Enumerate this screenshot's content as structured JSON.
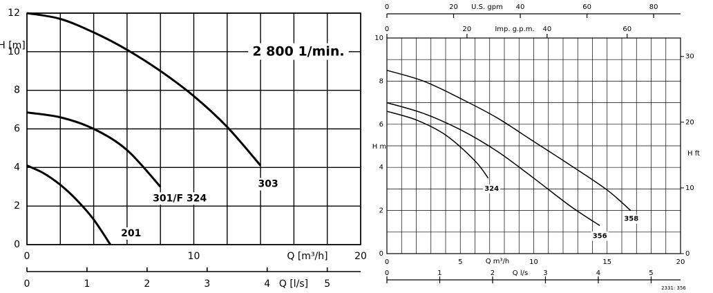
{
  "chart_data": [
    {
      "type": "line",
      "annotation": "2 800 1/min.",
      "xlabel": "Q [m³/h]",
      "ylabel": "H [m]",
      "xlim": [
        0,
        20
      ],
      "xticks": [
        0,
        10,
        20
      ],
      "ylim": [
        0,
        12
      ],
      "yticks": [
        0,
        2,
        4,
        6,
        8,
        10,
        12
      ],
      "xgrid": [
        2,
        4,
        6,
        8,
        12,
        14,
        16,
        18
      ],
      "x2label": "Q [l/s]",
      "x2lim": [
        0,
        5.556
      ],
      "x2ticks": [
        0,
        1,
        2,
        3,
        4,
        5
      ],
      "series": [
        {
          "name": "303",
          "color": "#000000",
          "x": [
            0,
            2,
            4,
            6,
            8,
            10,
            12,
            14
          ],
          "values": [
            12,
            11.7,
            11.0,
            10.1,
            9.0,
            7.7,
            6.1,
            4.1
          ]
        },
        {
          "name": "301/F 324",
          "color": "#000000",
          "x": [
            0,
            2,
            4,
            6,
            8
          ],
          "values": [
            6.85,
            6.6,
            6.0,
            4.9,
            3.0
          ]
        },
        {
          "name": "201",
          "color": "#000000",
          "x": [
            0,
            1,
            2,
            3,
            4,
            5
          ],
          "values": [
            4.1,
            3.7,
            3.1,
            2.3,
            1.3,
            0
          ]
        }
      ]
    },
    {
      "type": "line",
      "note": "2331: 356",
      "xlabel": "Q m³/h",
      "ylabel": "H m",
      "y2label": "H ft",
      "xlim": [
        0,
        20
      ],
      "xticks": [
        0,
        5,
        10,
        15,
        20
      ],
      "ylim": [
        0,
        10
      ],
      "yticks": [
        0,
        2,
        4,
        6,
        8,
        10
      ],
      "y2lim": [
        0,
        32.81
      ],
      "y2ticks": [
        0,
        10,
        20,
        30
      ],
      "xgrid": [
        1,
        2,
        3,
        4,
        6,
        7,
        8,
        9,
        11,
        12,
        13,
        14,
        16,
        17,
        18,
        19
      ],
      "ygrid": [
        1,
        3,
        5,
        7,
        9
      ],
      "x2label": "U.S. gpm",
      "x2lim": [
        0,
        88.06
      ],
      "x2ticks": [
        0,
        20,
        40,
        60,
        80
      ],
      "x3label": "Imp. g.p.m.",
      "x3lim": [
        0,
        73.33
      ],
      "x3ticks": [
        0,
        20,
        40,
        60
      ],
      "x4label": "Q l/s",
      "x4lim": [
        0,
        5.556
      ],
      "x4ticks": [
        0,
        1,
        2,
        3,
        4,
        5
      ],
      "series": [
        {
          "name": "358",
          "color": "#000000",
          "x": [
            0,
            2.5,
            5,
            7.5,
            10,
            12.5,
            15,
            16.6
          ],
          "values": [
            8.5,
            8.0,
            7.2,
            6.3,
            5.2,
            4.1,
            2.95,
            2.0
          ]
        },
        {
          "name": "356",
          "color": "#000000",
          "x": [
            0,
            2.5,
            5,
            7.5,
            10,
            12.5,
            14.5
          ],
          "values": [
            7.0,
            6.5,
            5.75,
            4.75,
            3.5,
            2.2,
            1.3
          ]
        },
        {
          "name": "324",
          "color": "#000000",
          "x": [
            0,
            2,
            4,
            6,
            6.9
          ],
          "values": [
            6.6,
            6.2,
            5.5,
            4.3,
            3.5
          ]
        }
      ]
    }
  ]
}
